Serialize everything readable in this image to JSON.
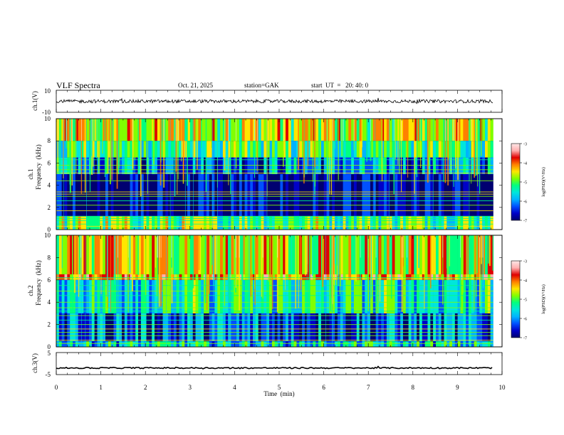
{
  "header": {
    "title": "VLF  Spectra",
    "date": "Oct. 21, 2025",
    "station": "station=GAK",
    "start_ut": "start  UT  =   20: 40: 0"
  },
  "colors": {
    "spectrogram_background": "#00005a",
    "waveform": "#000000",
    "colormap": [
      "#000070",
      "#0000c8",
      "#0050ff",
      "#00b4ff",
      "#00e6dc",
      "#00ff80",
      "#80ff00",
      "#ffe600",
      "#ff8000",
      "#e00000",
      "#ffb0b0",
      "#ffe8e8"
    ]
  },
  "chart_data": [
    {
      "type": "line",
      "name": "ch1-waveform",
      "ylabel": "ch.1(V)",
      "ylim": [
        -10,
        10
      ],
      "yticks": [
        "10",
        "-10"
      ],
      "xlim": [
        0,
        10
      ],
      "x_extent_min": [
        0,
        9.8
      ],
      "mean_level_V": 0,
      "amplitude_V": 1.5
    },
    {
      "type": "heatmap",
      "name": "ch1-spectrogram",
      "ylabel": "ch.1",
      "ylabel2": "Frequency  (kHz)",
      "ylim": [
        0,
        10
      ],
      "yticks": [
        "0",
        "2",
        "4",
        "6",
        "8",
        "10"
      ],
      "x_extent_min": [
        0,
        9.8
      ],
      "colorbar": {
        "label": "log(PSD)(V²/Hz)",
        "range": [
          -7,
          -3
        ],
        "ticks": [
          "-3",
          "-4",
          "-5",
          "-6",
          "-7"
        ]
      },
      "bands_kHz": [
        {
          "from": 8.0,
          "to": 10.0,
          "log_psd": -4.6
        },
        {
          "from": 6.5,
          "to": 8.0,
          "log_psd": -5.2
        },
        {
          "from": 5.0,
          "to": 6.5,
          "log_psd": -6.0
        },
        {
          "from": 1.2,
          "to": 5.0,
          "log_psd": -6.8
        },
        {
          "from": 0.0,
          "to": 1.2,
          "log_psd": -5.0
        }
      ],
      "lines_kHz": [
        0.3,
        0.5,
        0.8,
        1.0,
        1.2,
        1.7,
        2.2,
        2.6,
        3.0,
        3.2,
        3.4,
        4.4,
        5.1,
        5.4,
        5.8,
        6.3
      ]
    },
    {
      "type": "heatmap",
      "name": "ch2-spectrogram",
      "ylabel": "ch.2",
      "ylabel2": "Frequency  (kHz)",
      "ylim": [
        0,
        10
      ],
      "yticks": [
        "0",
        "2",
        "4",
        "6",
        "8",
        "10"
      ],
      "x_extent_min": [
        0,
        9.8
      ],
      "colorbar": {
        "label": "log(PSD)(V²/Hz)",
        "range": [
          -7,
          -3
        ],
        "ticks": [
          "-3",
          "-4",
          "-5",
          "-6",
          "-7"
        ]
      },
      "bands_kHz": [
        {
          "from": 6.5,
          "to": 10.0,
          "log_psd": -4.5
        },
        {
          "from": 6.0,
          "to": 6.5,
          "log_psd": -4.2
        },
        {
          "from": 3.0,
          "to": 6.0,
          "log_psd": -5.4
        },
        {
          "from": 0.5,
          "to": 3.0,
          "log_psd": -6.2
        },
        {
          "from": 0.0,
          "to": 0.5,
          "log_psd": -5.6
        }
      ],
      "lines_kHz": [
        0.3,
        0.6,
        1.0,
        1.3,
        1.6,
        2.0,
        2.4,
        2.8,
        3.2,
        3.5,
        4.0,
        4.6,
        5.0,
        5.5,
        6.1,
        6.2
      ]
    },
    {
      "type": "line",
      "name": "ch3-waveform",
      "ylabel": "ch.3(V)",
      "ylim": [
        -5,
        5
      ],
      "yticks": [
        "5",
        "-5"
      ],
      "x_extent_min": [
        0,
        9.8
      ],
      "mean_level_V": -2,
      "amplitude_V": 0.3
    }
  ],
  "x_axis": {
    "xlabel": "Time  (min)",
    "xlim": [
      0,
      10
    ],
    "ticks": [
      "0",
      "1",
      "2",
      "3",
      "4",
      "5",
      "6",
      "7",
      "8",
      "9",
      "10"
    ]
  }
}
